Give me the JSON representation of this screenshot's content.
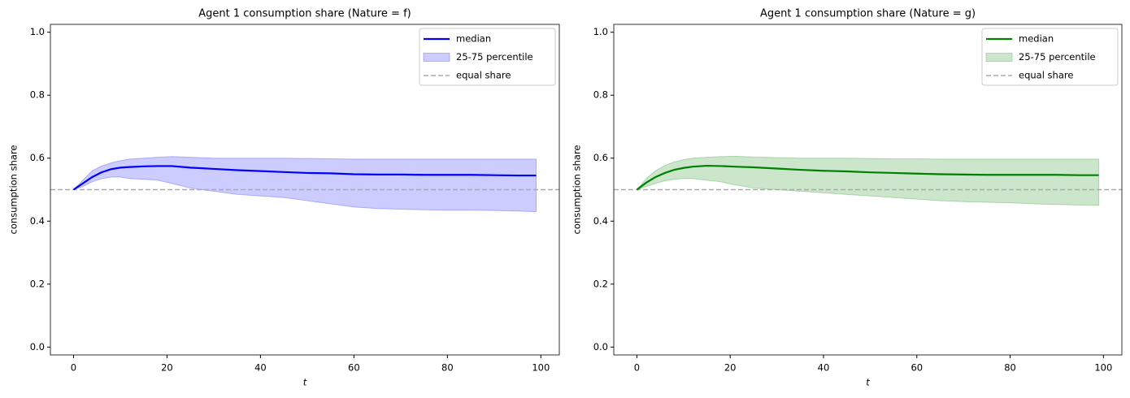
{
  "chart_data": [
    {
      "type": "line",
      "title": "Agent 1 consumption share (Nature = f)",
      "xlabel": "t",
      "ylabel": "consumption share",
      "x": [
        0,
        2,
        4,
        6,
        8,
        10,
        12,
        15,
        18,
        21,
        25,
        30,
        35,
        40,
        45,
        50,
        55,
        60,
        65,
        70,
        75,
        80,
        85,
        90,
        95,
        99
      ],
      "series": [
        {
          "name": "median",
          "color": "#0000ff",
          "values": [
            0.5,
            0.52,
            0.54,
            0.555,
            0.565,
            0.57,
            0.572,
            0.574,
            0.575,
            0.575,
            0.57,
            0.566,
            0.562,
            0.559,
            0.556,
            0.553,
            0.552,
            0.549,
            0.548,
            0.548,
            0.547,
            0.547,
            0.547,
            0.546,
            0.545,
            0.545
          ]
        }
      ],
      "band": {
        "name": "25-75 percentile",
        "color": "#0000ff",
        "upper": [
          0.5,
          0.53,
          0.56,
          0.575,
          0.585,
          0.592,
          0.597,
          0.6,
          0.603,
          0.605,
          0.603,
          0.6,
          0.6,
          0.6,
          0.6,
          0.599,
          0.598,
          0.597,
          0.597,
          0.597,
          0.597,
          0.597,
          0.597,
          0.597,
          0.597,
          0.597
        ],
        "lower": [
          0.5,
          0.51,
          0.525,
          0.535,
          0.54,
          0.54,
          0.535,
          0.533,
          0.53,
          0.52,
          0.505,
          0.495,
          0.485,
          0.48,
          0.475,
          0.465,
          0.455,
          0.445,
          0.44,
          0.438,
          0.436,
          0.435,
          0.435,
          0.434,
          0.432,
          0.43
        ]
      },
      "hline": {
        "name": "equal share",
        "value": 0.5,
        "color": "#aaaaaa"
      },
      "xlim": [
        -4.95,
        103.95
      ],
      "xticks": [
        0,
        20,
        40,
        60,
        80,
        100
      ],
      "ylim": [
        -0.025,
        1.025
      ],
      "yticks": [
        0.0,
        0.2,
        0.4,
        0.6,
        0.8,
        1.0
      ],
      "legend": "upper right"
    },
    {
      "type": "line",
      "title": "Agent 1 consumption share (Nature = g)",
      "xlabel": "t",
      "ylabel": "consumption share",
      "x": [
        0,
        2,
        4,
        6,
        8,
        10,
        12,
        15,
        18,
        21,
        25,
        30,
        35,
        40,
        45,
        50,
        55,
        60,
        65,
        70,
        75,
        80,
        85,
        90,
        95,
        99
      ],
      "series": [
        {
          "name": "median",
          "color": "#008000",
          "values": [
            0.5,
            0.522,
            0.54,
            0.553,
            0.563,
            0.569,
            0.573,
            0.576,
            0.575,
            0.573,
            0.571,
            0.567,
            0.563,
            0.56,
            0.558,
            0.555,
            0.553,
            0.551,
            0.549,
            0.548,
            0.547,
            0.547,
            0.547,
            0.547,
            0.546,
            0.546
          ]
        }
      ],
      "band": {
        "name": "25-75 percentile",
        "color": "#008000",
        "upper": [
          0.5,
          0.535,
          0.56,
          0.577,
          0.588,
          0.595,
          0.6,
          0.603,
          0.605,
          0.606,
          0.604,
          0.602,
          0.6,
          0.6,
          0.6,
          0.599,
          0.598,
          0.598,
          0.597,
          0.597,
          0.597,
          0.597,
          0.597,
          0.597,
          0.597,
          0.597
        ],
        "lower": [
          0.5,
          0.51,
          0.52,
          0.528,
          0.533,
          0.535,
          0.535,
          0.53,
          0.525,
          0.515,
          0.505,
          0.5,
          0.495,
          0.49,
          0.485,
          0.48,
          0.475,
          0.47,
          0.465,
          0.462,
          0.46,
          0.458,
          0.455,
          0.453,
          0.451,
          0.45
        ]
      },
      "hline": {
        "name": "equal share",
        "value": 0.5,
        "color": "#aaaaaa"
      },
      "xlim": [
        -4.95,
        103.95
      ],
      "xticks": [
        0,
        20,
        40,
        60,
        80,
        100
      ],
      "ylim": [
        -0.025,
        1.025
      ],
      "yticks": [
        0.0,
        0.2,
        0.4,
        0.6,
        0.8,
        1.0
      ],
      "legend": "upper right"
    }
  ]
}
